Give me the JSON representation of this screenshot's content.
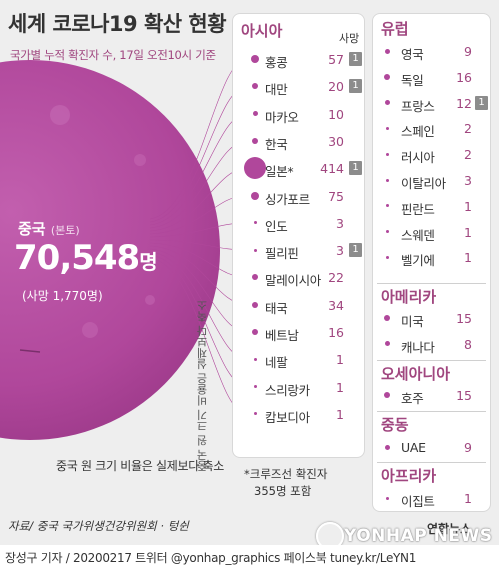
{
  "title": "세계 코로나19 확산 현황",
  "subtitle": "국가별 누적 확진자 수, 17일 오전10시 기준",
  "china": {
    "label": "중국",
    "label_sub": "(본토)",
    "count": "70,548",
    "unit": "명",
    "deaths": "(사망 1,770명)"
  },
  "scale_note": "중국 원 크기 비율은 실제보다 축소",
  "caption": "중국 원 크기 비율은 실제보다 축소",
  "death_col_label": "사망",
  "regions": {
    "asia": {
      "name": "아시아",
      "rows": [
        {
          "name": "홍콩",
          "count": "57",
          "death": "1"
        },
        {
          "name": "대만",
          "count": "20",
          "death": "1"
        },
        {
          "name": "마카오",
          "count": "10",
          "death": ""
        },
        {
          "name": "한국",
          "count": "30",
          "death": ""
        },
        {
          "name": "일본*",
          "count": "414",
          "death": "1"
        },
        {
          "name": "싱가포르",
          "count": "75",
          "death": ""
        },
        {
          "name": "인도",
          "count": "3",
          "death": ""
        },
        {
          "name": "필리핀",
          "count": "3",
          "death": "1"
        },
        {
          "name": "말레이시아",
          "count": "22",
          "death": ""
        },
        {
          "name": "태국",
          "count": "34",
          "death": ""
        },
        {
          "name": "베트남",
          "count": "16",
          "death": ""
        },
        {
          "name": "네팔",
          "count": "1",
          "death": ""
        },
        {
          "name": "스리랑카",
          "count": "1",
          "death": ""
        },
        {
          "name": "캄보디아",
          "count": "1",
          "death": ""
        }
      ]
    },
    "europe": {
      "name": "유럽",
      "rows": [
        {
          "name": "영국",
          "count": "9",
          "death": ""
        },
        {
          "name": "독일",
          "count": "16",
          "death": ""
        },
        {
          "name": "프랑스",
          "count": "12",
          "death": "1"
        },
        {
          "name": "스페인",
          "count": "2",
          "death": ""
        },
        {
          "name": "러시아",
          "count": "2",
          "death": ""
        },
        {
          "name": "이탈리아",
          "count": "3",
          "death": ""
        },
        {
          "name": "핀란드",
          "count": "1",
          "death": ""
        },
        {
          "name": "스웨덴",
          "count": "1",
          "death": ""
        },
        {
          "name": "벨기에",
          "count": "1",
          "death": ""
        }
      ]
    },
    "america": {
      "name": "아메리카",
      "rows": [
        {
          "name": "미국",
          "count": "15",
          "death": ""
        },
        {
          "name": "캐나다",
          "count": "8",
          "death": ""
        }
      ]
    },
    "oceania": {
      "name": "오세아니아",
      "rows": [
        {
          "name": "호주",
          "count": "15",
          "death": ""
        }
      ]
    },
    "middle_east": {
      "name": "중동",
      "rows": [
        {
          "name": "UAE",
          "count": "9",
          "death": ""
        }
      ]
    },
    "africa": {
      "name": "아프리카",
      "rows": [
        {
          "name": "이집트",
          "count": "1",
          "death": ""
        }
      ]
    }
  },
  "footnote_line1": "*크루즈선 확진자",
  "footnote_line2": "355명 포함",
  "source": "자료/ 중국 국가위생건강위원회 · 텅쉰",
  "credit": "장성구 기자 / 20200217 트위터 @yonhap_graphics  페이스북 tuney.kr/LeYN1",
  "logo": "연합뉴스",
  "watermark": "YONHAP NEWS",
  "colors": {
    "accent": "#a0467f",
    "dot": "#b0479b",
    "globe": "#b8479f",
    "badge": "#8c8c8c"
  }
}
